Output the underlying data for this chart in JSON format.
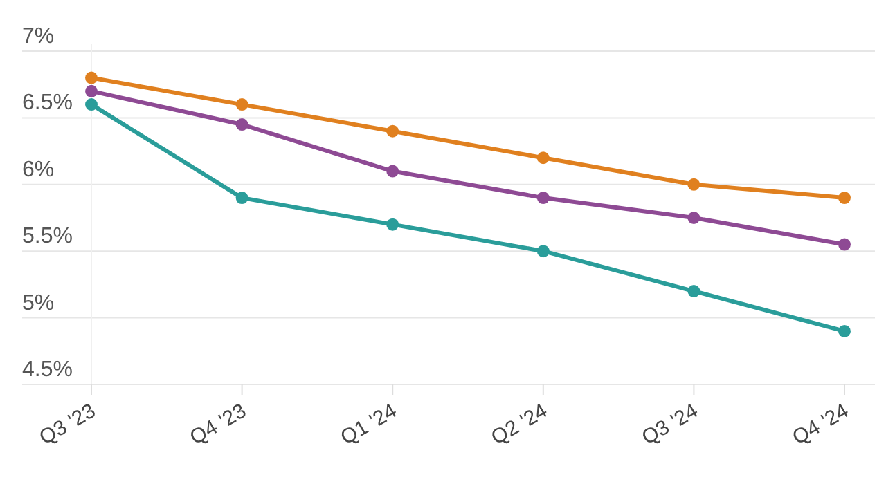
{
  "chart_data": {
    "type": "line",
    "categories": [
      "Q3 '23",
      "Q4 '23",
      "Q1 '24",
      "Q2 '24",
      "Q3 '24",
      "Q4 '24"
    ],
    "series": [
      {
        "color": "#e0801f",
        "values": [
          6.8,
          6.6,
          6.4,
          6.2,
          6.0,
          5.9
        ]
      },
      {
        "color": "#8e4a94",
        "values": [
          6.7,
          6.45,
          6.1,
          5.9,
          5.75,
          5.55
        ]
      },
      {
        "color": "#2a9d9a",
        "values": [
          6.6,
          5.9,
          5.7,
          5.5,
          5.2,
          4.9
        ]
      }
    ],
    "ylim": [
      4.5,
      7
    ],
    "yticks": [
      {
        "value": 4.5,
        "label": "4.5%"
      },
      {
        "value": 5,
        "label": "5%"
      },
      {
        "value": 5.5,
        "label": "5.5%"
      },
      {
        "value": 6,
        "label": "6%"
      },
      {
        "value": 6.5,
        "label": "6.5%"
      },
      {
        "value": 7,
        "label": "7%"
      }
    ],
    "grid": "y",
    "marker": "circle",
    "line_style": "solid"
  }
}
